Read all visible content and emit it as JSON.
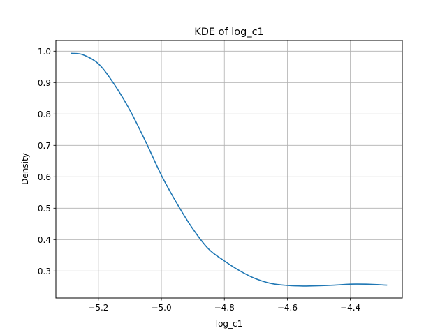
{
  "chart_data": {
    "type": "line",
    "title": "KDE of log_c1",
    "xlabel": "log_c1",
    "ylabel": "Density",
    "xlim": [
      -5.335,
      -4.235
    ],
    "ylim": [
      0.214,
      1.034
    ],
    "grid": true,
    "xticks": [
      -5.2,
      -5.0,
      -4.8,
      -4.6,
      -4.4
    ],
    "xtick_labels": [
      "−5.2",
      "−5.0",
      "−4.8",
      "−4.6",
      "−4.4"
    ],
    "yticks": [
      0.3,
      0.4,
      0.5,
      0.6,
      0.7,
      0.8,
      0.9,
      1.0
    ],
    "ytick_labels": [
      "0.3",
      "0.4",
      "0.5",
      "0.6",
      "0.7",
      "0.8",
      "0.9",
      "1.0"
    ],
    "line_color": "#1f77b4",
    "series": [
      {
        "x": [
          -5.285,
          -5.25,
          -5.2,
          -5.15,
          -5.1,
          -5.05,
          -5.0,
          -4.95,
          -4.9,
          -4.85,
          -4.8,
          -4.75,
          -4.7,
          -4.65,
          -4.6,
          -4.55,
          -4.5,
          -4.45,
          -4.4,
          -4.35,
          -4.285
        ],
        "values": [
          0.993,
          0.989,
          0.96,
          0.895,
          0.812,
          0.712,
          0.605,
          0.514,
          0.434,
          0.37,
          0.332,
          0.3,
          0.275,
          0.26,
          0.254,
          0.252,
          0.253,
          0.255,
          0.258,
          0.258,
          0.255
        ]
      }
    ]
  }
}
